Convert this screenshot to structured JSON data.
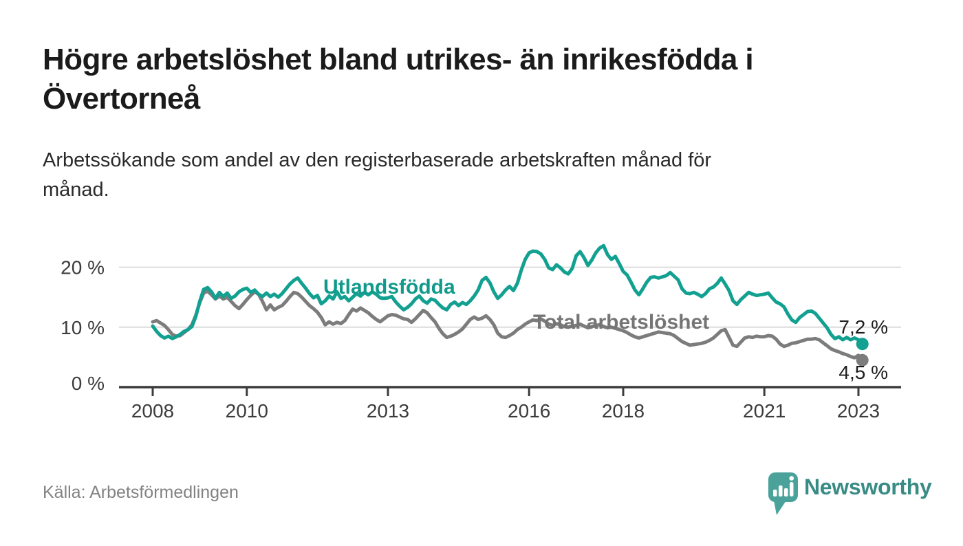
{
  "header": {
    "title_lines": [
      "Högre arbetslöshet bland utrikes- än inrikesfödda i",
      "Övertorneå"
    ],
    "subtitle_lines": [
      "Arbetssökande som andel av den registerbaserade arbetskraften månad för",
      "månad."
    ]
  },
  "chart_data": {
    "type": "line",
    "title": "Högre arbetslöshet bland utrikes- än inrikesfödda i Övertorneå",
    "subtitle": "Arbetssökande som andel av den registerbaserade arbetskraften månad för månad.",
    "unit": "%",
    "x_axis": {
      "frequency": "monthly",
      "start_year": 2008,
      "start_month": 1,
      "end_year": 2023,
      "end_month": 2,
      "tick_years": [
        2008,
        2010,
        2013,
        2016,
        2018,
        2021,
        2023
      ]
    },
    "y_axis": {
      "ticks": [
        {
          "value": 0,
          "label": "0 %"
        },
        {
          "value": 10,
          "label": "10 %"
        },
        {
          "value": 20,
          "label": "20 %"
        }
      ],
      "range": [
        0,
        25
      ],
      "grid": true
    },
    "grid_color": "#dcdcdc",
    "axis_color": "#3c3c3c",
    "legend_position": "inline-labels",
    "series": [
      {
        "name": "Utlandsfödda",
        "color": "#12a091",
        "label_color": "#0f9a8b",
        "end_label": "7,2 %",
        "end_value": 7.2,
        "values": [
          10.2,
          9.3,
          8.6,
          8.2,
          8.5,
          8.1,
          8.4,
          8.8,
          9.3,
          9.6,
          10.1,
          11.8,
          14.3,
          16.3,
          16.6,
          15.9,
          14.8,
          15.8,
          15.1,
          15.7,
          14.8,
          15.2,
          15.9,
          16.3,
          16.5,
          15.8,
          16.2,
          15.5,
          15.1,
          15.7,
          15.1,
          15.5,
          15.0,
          15.6,
          16.4,
          17.2,
          17.8,
          18.2,
          17.3,
          16.5,
          15.6,
          14.9,
          15.3,
          13.9,
          14.4,
          15.2,
          14.7,
          15.9,
          14.8,
          15.1,
          14.4,
          15.0,
          15.6,
          15.2,
          15.8,
          15.4,
          15.9,
          15.5,
          14.9,
          14.8,
          14.9,
          15.1,
          14.2,
          13.5,
          12.9,
          13.3,
          13.9,
          14.7,
          15.2,
          14.4,
          14.0,
          14.7,
          14.5,
          13.8,
          13.2,
          12.9,
          13.8,
          14.2,
          13.6,
          14.1,
          13.8,
          14.4,
          15.2,
          16.2,
          17.8,
          18.3,
          17.4,
          15.9,
          14.8,
          15.4,
          16.2,
          16.8,
          16.1,
          17.3,
          19.5,
          21.3,
          22.4,
          22.7,
          22.6,
          22.2,
          21.3,
          19.9,
          19.6,
          20.4,
          19.9,
          19.2,
          18.9,
          19.8,
          21.9,
          22.6,
          21.6,
          20.3,
          21.2,
          22.4,
          23.2,
          23.6,
          22.1,
          21.3,
          21.8,
          20.6,
          19.3,
          18.7,
          17.5,
          16.2,
          15.4,
          16.4,
          17.5,
          18.3,
          18.4,
          18.2,
          18.4,
          18.6,
          19.1,
          18.5,
          17.9,
          16.4,
          15.7,
          15.6,
          15.8,
          15.5,
          15.1,
          15.6,
          16.4,
          16.7,
          17.3,
          18.2,
          17.2,
          16.1,
          14.4,
          13.8,
          14.6,
          15.2,
          15.8,
          15.5,
          15.3,
          15.4,
          15.5,
          15.7,
          14.9,
          14.2,
          13.9,
          13.4,
          12.2,
          11.2,
          10.8,
          11.6,
          12.1,
          12.6,
          12.7,
          12.3,
          11.5,
          10.7,
          9.9,
          8.8,
          8.1,
          8.4,
          7.9,
          8.3,
          7.9,
          8.2,
          7.9,
          7.2
        ]
      },
      {
        "name": "Total arbetslöshet",
        "color": "#7c7c7c",
        "label_color": "#757575",
        "end_label": "4,5 %",
        "end_value": 4.5,
        "values": [
          10.9,
          11.1,
          10.7,
          10.3,
          9.6,
          8.8,
          8.5,
          8.6,
          9.1,
          9.6,
          10.4,
          12.0,
          14.1,
          15.7,
          16.0,
          15.4,
          14.7,
          15.2,
          14.7,
          15.0,
          14.3,
          13.6,
          13.1,
          13.8,
          14.6,
          15.3,
          15.9,
          15.5,
          14.3,
          12.9,
          13.7,
          12.9,
          13.3,
          13.6,
          14.3,
          15.1,
          15.8,
          15.6,
          15.0,
          14.3,
          13.6,
          13.1,
          12.5,
          11.6,
          10.4,
          10.9,
          10.5,
          10.8,
          10.6,
          11.1,
          12.1,
          13.0,
          12.7,
          13.2,
          12.8,
          12.4,
          11.8,
          11.3,
          10.9,
          11.4,
          11.9,
          12.1,
          12.0,
          11.7,
          11.4,
          11.3,
          10.8,
          11.4,
          12.1,
          12.8,
          12.4,
          11.6,
          10.9,
          9.8,
          8.9,
          8.3,
          8.5,
          8.8,
          9.2,
          9.7,
          10.5,
          11.3,
          11.7,
          11.3,
          11.5,
          11.9,
          11.3,
          10.4,
          9.0,
          8.4,
          8.3,
          8.6,
          9.0,
          9.6,
          10.0,
          10.5,
          10.9,
          11.2,
          11.1,
          11.4,
          11.0,
          10.5,
          10.3,
          10.6,
          10.4,
          10.1,
          10.0,
          10.2,
          10.3,
          10.5,
          10.2,
          9.9,
          10.1,
          10.3,
          10.4,
          10.1,
          9.9,
          10.0,
          9.8,
          9.6,
          9.4,
          9.1,
          8.7,
          8.4,
          8.2,
          8.4,
          8.6,
          8.8,
          9.0,
          9.2,
          9.1,
          9.0,
          8.9,
          8.6,
          8.1,
          7.6,
          7.3,
          7.0,
          7.1,
          7.2,
          7.3,
          7.5,
          7.8,
          8.2,
          8.8,
          9.4,
          9.6,
          8.3,
          7.0,
          6.8,
          7.5,
          8.2,
          8.4,
          8.3,
          8.5,
          8.4,
          8.4,
          8.6,
          8.5,
          8.0,
          7.2,
          6.8,
          7.0,
          7.3,
          7.4,
          7.6,
          7.8,
          8.0,
          8.0,
          8.1,
          7.9,
          7.4,
          6.9,
          6.4,
          6.1,
          5.9,
          5.6,
          5.4,
          5.1,
          4.9,
          5.3,
          4.5
        ]
      }
    ]
  },
  "footer": {
    "source": "Källa: Arbetsförmedlingen",
    "brand": "Newsworthy"
  },
  "colors": {
    "title_text": "#1b1b1b",
    "subtitle_text": "#2a2a2a",
    "axis_text": "#3c3c3c",
    "end_label_text": "#1d1d1d",
    "source_text": "#828282",
    "logo_teal": "#4ba29b",
    "wordmark_teal": "#398b85"
  }
}
